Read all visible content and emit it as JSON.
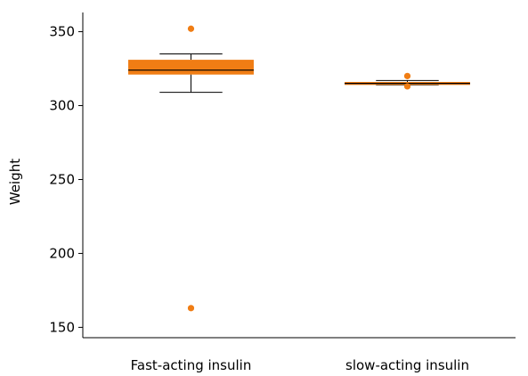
{
  "chart_data": {
    "type": "box",
    "title": "",
    "xlabel": "",
    "ylabel": "Weight",
    "ylim": [
      143,
      363
    ],
    "yticks": [
      150,
      200,
      250,
      300,
      350
    ],
    "grid": false,
    "box_color": "#f07d14",
    "outlier_color": "#f07d14",
    "categories": [
      "Fast-acting insulin",
      "slow-acting insulin"
    ],
    "boxes": [
      {
        "whisker_low": 309,
        "q1": 321,
        "median": 324,
        "q3": 331,
        "whisker_high": 335,
        "outliers": [
          352,
          163
        ]
      },
      {
        "whisker_low": 314,
        "q1": 314,
        "median": 315,
        "q3": 316,
        "whisker_high": 317,
        "outliers": [
          320,
          313
        ]
      }
    ]
  }
}
